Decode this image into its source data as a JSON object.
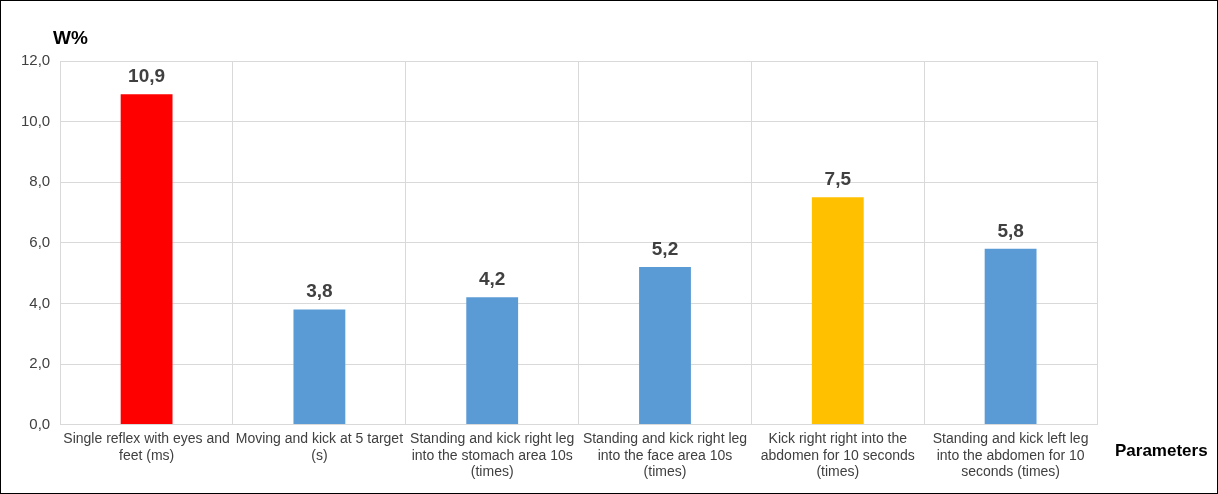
{
  "chart_data": {
    "type": "bar",
    "ylabel": "W%",
    "xlabel": "Parameters",
    "categories": [
      "Single reflex with eyes and feet (ms)",
      "Moving and kick at 5 target (s)",
      "Standing and kick right leg into the stomach area 10s (times)",
      "Standing and kick right leg into the face area 10s (times)",
      "Kick right right into the abdomen for 10 seconds (times)",
      "Standing and kick left leg into the abdomen for 10 seconds (times)"
    ],
    "values": [
      10.9,
      3.8,
      4.2,
      5.2,
      7.5,
      5.8
    ],
    "colors": [
      "#ff0000",
      "#5b9bd5",
      "#5b9bd5",
      "#5b9bd5",
      "#ffc000",
      "#5b9bd5"
    ],
    "value_labels": [
      "10,9",
      "3,8",
      "4,2",
      "5,2",
      "7,5",
      "5,8"
    ],
    "ylim": [
      0,
      12
    ],
    "yticks": [
      {
        "value": 0,
        "label": "0,0"
      },
      {
        "value": 2,
        "label": "2,0"
      },
      {
        "value": 4,
        "label": "4,0"
      },
      {
        "value": 6,
        "label": "6,0"
      },
      {
        "value": 8,
        "label": "8,0"
      },
      {
        "value": 10,
        "label": "10,0"
      },
      {
        "value": 12,
        "label": "12,0"
      }
    ],
    "grid": true,
    "legend": false
  }
}
